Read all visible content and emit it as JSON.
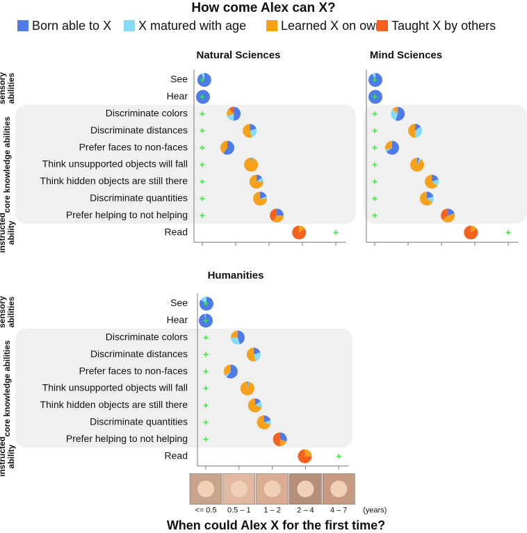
{
  "figure": {
    "title": "How come Alex can X?",
    "legend": [
      {
        "name": "Born able to X",
        "color": "#4f7be8"
      },
      {
        "name": "X matured with age",
        "color": "#86dcf7"
      },
      {
        "name": "Learned X on own",
        "color": "#f7a11a"
      },
      {
        "name": "Taught X by others",
        "color": "#f5621e"
      }
    ],
    "xlabel": "When could Alex X for the first time?"
  },
  "chart_data": [
    {
      "type": "pie-dot",
      "title": "Natural Sciences",
      "groups": [
        {
          "label": "sensory abilities",
          "rows": [
            "See",
            "Hear"
          ]
        },
        {
          "label": "core knowledge abilities",
          "rows": [
            "Discriminate colors",
            "Discriminate distances",
            "Prefer faces to non-faces",
            "Think unsupported objects will fall",
            "Think hidden objects are still there",
            "Discriminate quantities",
            "Prefer helping to not helping"
          ]
        },
        {
          "label": "instructed ability",
          "rows": [
            "Read"
          ]
        }
      ],
      "xlim": [
        -0.25,
        4.3
      ],
      "xticks": [
        0,
        1,
        2,
        3,
        4
      ],
      "x": [
        0.06,
        0.02,
        0.94,
        1.42,
        0.75,
        1.46,
        1.62,
        1.73,
        2.23,
        2.9
      ],
      "plus_x": [
        0,
        0,
        0,
        0,
        0,
        0,
        0,
        0,
        0,
        4
      ],
      "series": [
        {
          "values": [
            93,
            100,
            50,
            20,
            60,
            3,
            15,
            20,
            25,
            0
          ]
        },
        {
          "values": [
            7,
            0,
            20,
            25,
            0,
            2,
            10,
            5,
            0,
            0
          ]
        },
        {
          "values": [
            0,
            0,
            18,
            55,
            40,
            95,
            75,
            75,
            35,
            15
          ]
        },
        {
          "values": [
            0,
            0,
            12,
            0,
            0,
            0,
            0,
            0,
            40,
            85
          ]
        }
      ]
    },
    {
      "type": "pie-dot",
      "title": "Mind Sciences",
      "xlim": [
        -0.25,
        4.3
      ],
      "xticks": [
        0,
        1,
        2,
        3,
        4
      ],
      "x": [
        0.02,
        0.02,
        0.69,
        1.21,
        0.52,
        1.27,
        1.71,
        1.56,
        2.19,
        2.88
      ],
      "plus_x": [
        0,
        0,
        0,
        0,
        0,
        0,
        0,
        0,
        0,
        4
      ],
      "series": [
        {
          "values": [
            92,
            100,
            55,
            15,
            65,
            5,
            20,
            20,
            20,
            0
          ]
        },
        {
          "values": [
            8,
            0,
            30,
            35,
            5,
            5,
            15,
            15,
            0,
            0
          ]
        },
        {
          "values": [
            0,
            0,
            15,
            50,
            30,
            90,
            65,
            65,
            45,
            15
          ]
        },
        {
          "values": [
            0,
            0,
            0,
            0,
            0,
            0,
            0,
            0,
            35,
            85
          ]
        }
      ]
    },
    {
      "type": "pie-dot",
      "title": "Humanities",
      "groups": [
        {
          "label": "sensory abilities",
          "rows": [
            "See",
            "Hear"
          ]
        },
        {
          "label": "core knowledge abilities",
          "rows": [
            "Discriminate colors",
            "Discriminate distances",
            "Prefer faces to non-faces",
            "Think unsupported objects will fall",
            "Think hidden objects are still there",
            "Discriminate quantities",
            "Prefer helping to not helping"
          ]
        },
        {
          "label": "instructed ability",
          "rows": [
            "Read"
          ]
        }
      ],
      "xlim": [
        -0.25,
        4.3
      ],
      "xticks": [
        {
          "value": 0,
          "label": "<= 0.5"
        },
        {
          "value": 1,
          "label": "0.5 – 1"
        },
        {
          "value": 2,
          "label": "1 – 2"
        },
        {
          "value": 3,
          "label": "2 – 4"
        },
        {
          "value": 4,
          "label": "4 – 7"
        }
      ],
      "x_unit": "(years)",
      "x": [
        0.02,
        0,
        0.96,
        1.44,
        0.75,
        1.25,
        1.48,
        1.75,
        2.23,
        2.98
      ],
      "plus_x": [
        0,
        0,
        0,
        0,
        0,
        0,
        0,
        0,
        0,
        4
      ],
      "series": [
        {
          "values": [
            85,
            97,
            45,
            20,
            60,
            3,
            15,
            20,
            30,
            0
          ]
        },
        {
          "values": [
            15,
            3,
            30,
            25,
            5,
            2,
            15,
            10,
            0,
            0
          ]
        },
        {
          "values": [
            0,
            0,
            25,
            55,
            35,
            95,
            70,
            70,
            20,
            25
          ]
        },
        {
          "values": [
            0,
            0,
            0,
            0,
            0,
            0,
            0,
            0,
            50,
            75
          ]
        }
      ]
    }
  ]
}
